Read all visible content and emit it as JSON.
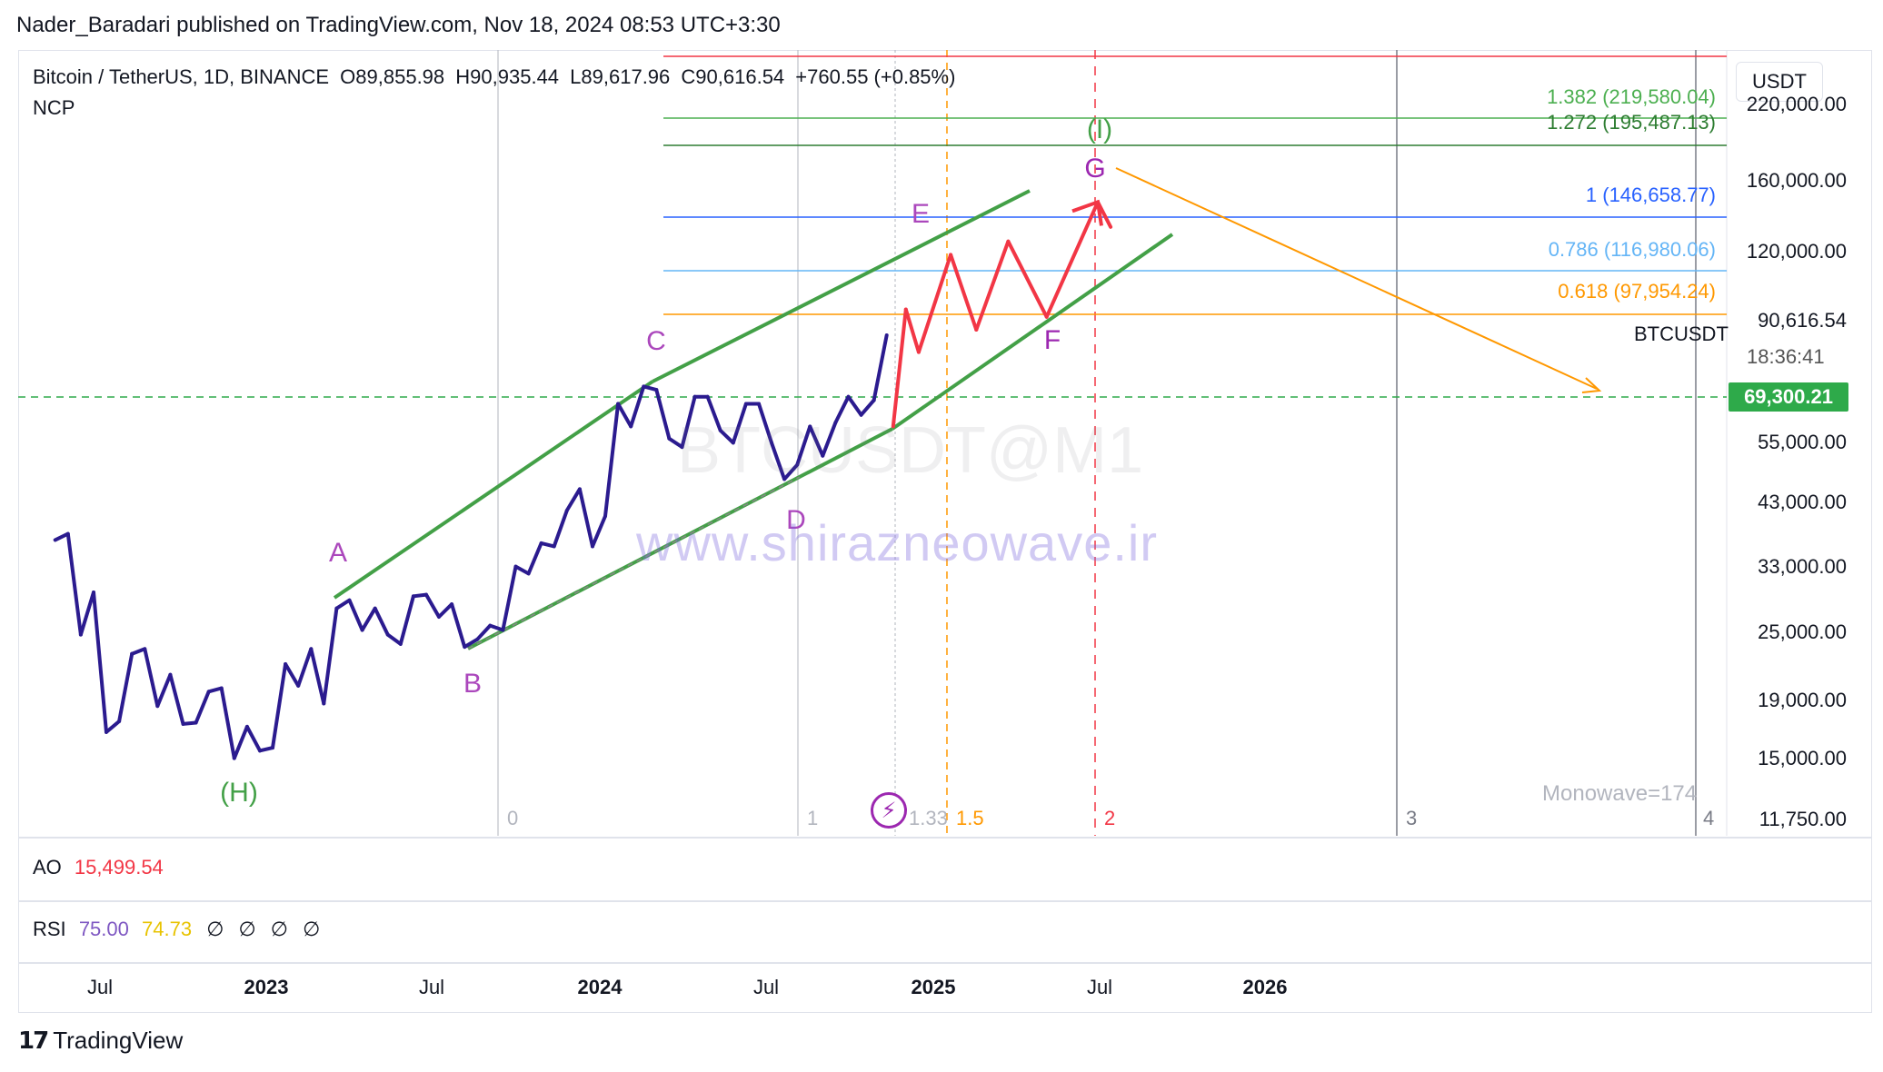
{
  "header": {
    "publisher_line": "Nader_Baradari published on TradingView.com, Nov 18, 2024 08:53 UTC+3:30"
  },
  "legend": {
    "symbol": "Bitcoin / TetherUS, 1D, BINANCE",
    "open": "O89,855.98",
    "high": "H90,935.44",
    "low": "L89,617.96",
    "close": "C90,616.54",
    "change": "+760.55 (+0.85%)",
    "indicator": "NCP"
  },
  "unit_button": "USDT",
  "price_axis": {
    "ticks": [
      "220,000.00",
      "160,000.00",
      "120,000.00",
      "90,616.54",
      "55,000.00",
      "43,000.00",
      "33,000.00",
      "25,000.00",
      "19,000.00",
      "15,000.00",
      "11,750.00"
    ],
    "symbol_tag": "BTCUSDT",
    "countdown": "18:36:41",
    "last_price_tag": "69,300.21"
  },
  "fib_levels": [
    {
      "label": "1.382 (219,580.04)",
      "color": "#4caf50"
    },
    {
      "label": "1.272 (195,487.13)",
      "color": "#2e7d32"
    },
    {
      "label": "1 (146,658.77)",
      "color": "#2962ff"
    },
    {
      "label": "0.786 (116,980.06)",
      "color": "#64b5f6"
    },
    {
      "label": "0.618 (97,954.24)",
      "color": "#ff9800"
    }
  ],
  "time_fib_labels": [
    "0",
    "1",
    "1.33",
    "1.5",
    "2",
    "3",
    "4"
  ],
  "wave_labels": {
    "H": "(H)",
    "A": "A",
    "B": "B",
    "C": "C",
    "D": "D",
    "E": "E",
    "F": "F",
    "G": "G",
    "I": "(I)"
  },
  "watermark": {
    "symbol": "BTCUSDT@M1",
    "site": "www.shirazneowave.ir"
  },
  "monowave": "Monowave=174",
  "ao_pane": {
    "name": "AO",
    "value": "15,499.54"
  },
  "rsi_pane": {
    "name": "RSI",
    "value1": "75.00",
    "value2": "74.73",
    "extra": [
      "∅",
      "∅",
      "∅",
      "∅"
    ]
  },
  "time_axis": [
    {
      "label": "Jul",
      "bold": false
    },
    {
      "label": "2023",
      "bold": true
    },
    {
      "label": "Jul",
      "bold": false
    },
    {
      "label": "2024",
      "bold": true
    },
    {
      "label": "Jul",
      "bold": false
    },
    {
      "label": "2025",
      "bold": true
    },
    {
      "label": "Jul",
      "bold": false
    },
    {
      "label": "2026",
      "bold": true
    }
  ],
  "footer": {
    "brand": "TradingView"
  },
  "colors": {
    "price_line": "#2b1b8f",
    "projection": "#f23645",
    "channel": "#43a047",
    "wave_label": "#ab47bc",
    "orange_arrow": "#ff9800",
    "support_line": "#2eaa4a"
  },
  "chart_data": {
    "type": "line",
    "title": "Bitcoin / TetherUS, 1D, BINANCE",
    "y_scale": "log",
    "ylim": [
      11750,
      230000
    ],
    "series": [
      {
        "x": [
          "2022-05-15",
          "2022-05-29",
          "2022-06-12",
          "2022-06-26",
          "2022-07-10",
          "2022-07-24",
          "2022-08-07",
          "2022-08-21",
          "2022-09-04",
          "2022-09-18",
          "2022-10-02",
          "2022-10-16",
          "2022-10-30",
          "2022-11-13",
          "2022-11-27",
          "2022-12-11",
          "2022-12-25",
          "2023-01-08",
          "2023-01-22",
          "2023-02-05",
          "2023-02-19",
          "2023-03-05",
          "2023-03-19",
          "2023-04-02",
          "2023-04-16",
          "2023-04-30",
          "2023-05-14",
          "2023-05-28",
          "2023-06-11",
          "2023-06-25",
          "2023-07-09",
          "2023-07-23",
          "2023-08-06",
          "2023-08-20",
          "2023-09-03",
          "2023-09-17",
          "2023-10-01",
          "2023-10-15",
          "2023-10-29",
          "2023-11-12",
          "2023-11-26",
          "2023-12-10",
          "2023-12-24",
          "2024-01-07",
          "2024-01-21",
          "2024-02-04",
          "2024-02-18",
          "2024-03-03",
          "2024-03-17",
          "2024-03-31",
          "2024-04-14",
          "2024-04-28",
          "2024-05-12",
          "2024-05-26",
          "2024-06-09",
          "2024-06-23",
          "2024-07-07",
          "2024-07-21",
          "2024-08-04",
          "2024-08-18",
          "2024-09-01",
          "2024-09-15",
          "2024-09-29",
          "2024-10-13",
          "2024-10-27",
          "2024-11-10"
        ],
        "y": [
          39000,
          40000,
          26500,
          31500,
          17800,
          18600,
          24500,
          25000,
          19800,
          22500,
          18400,
          18500,
          21000,
          21300,
          16000,
          18200,
          16500,
          16700,
          23500,
          21500,
          25000,
          20000,
          29500,
          30500,
          27000,
          29500,
          26500,
          25500,
          31000,
          31200,
          28500,
          30000,
          25200,
          26000,
          27500,
          27000,
          35000,
          34000,
          38500,
          38000,
          44000,
          48000,
          38000,
          43000,
          68000,
          62000,
          73000,
          72000,
          59000,
          57000,
          70000,
          70000,
          61000,
          58000,
          68000,
          68000,
          58000,
          50000,
          53000,
          62000,
          55000,
          63000,
          70000,
          65000,
          69000,
          90000
        ]
      },
      {
        "name": "Projection",
        "x": [
          "2024-11-17",
          "2024-12-01",
          "2024-12-15",
          "2025-01-19",
          "2025-02-16",
          "2025-03-23",
          "2025-05-04",
          "2025-06-29",
          "2025-07-13"
        ],
        "y": [
          62000,
          100000,
          84000,
          125000,
          92000,
          132000,
          97000,
          155000,
          140000
        ]
      }
    ],
    "annotations": [
      "(H)",
      "A",
      "B",
      "C",
      "D",
      "E",
      "F",
      "G",
      "(I)",
      "Monowave=174"
    ]
  }
}
